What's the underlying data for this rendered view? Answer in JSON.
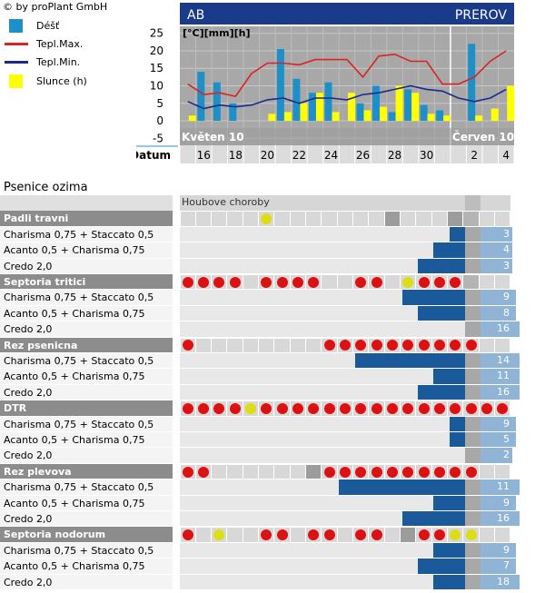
{
  "copyright": "© by proPlant GmbH",
  "legend": [
    {
      "label": "Déšť",
      "icon": "rain-swatch",
      "color": "#1e90c8"
    },
    {
      "label": "Tepl.Max.",
      "icon": "max-temp-line",
      "color": "#dd2222"
    },
    {
      "label": "Tepl.Min.",
      "icon": "min-temp-line",
      "color": "#1a2a8a"
    },
    {
      "label": "Slunce (h)",
      "icon": "sun-swatch",
      "color": "#ffff00"
    }
  ],
  "chart_data": {
    "type": "bar+line",
    "header_left": "AB",
    "header_right": "PREROV",
    "units_label": "[°C][mm][h]",
    "yticks": [
      25,
      20,
      15,
      10,
      5,
      0,
      -5
    ],
    "ylim": [
      -7,
      27
    ],
    "xlabel": "Datum",
    "month_labels": [
      {
        "label": "Květen 10",
        "day_index": 0
      },
      {
        "label": "Červen 10",
        "day_index": 17
      }
    ],
    "day_labels": [
      {
        "label": "16",
        "day_index": 1
      },
      {
        "label": "18",
        "day_index": 3
      },
      {
        "label": "20",
        "day_index": 5
      },
      {
        "label": "22",
        "day_index": 7
      },
      {
        "label": "24",
        "day_index": 9
      },
      {
        "label": "26",
        "day_index": 11
      },
      {
        "label": "28",
        "day_index": 13
      },
      {
        "label": "30",
        "day_index": 15
      },
      {
        "label": "2",
        "day_index": 18
      },
      {
        "label": "4",
        "day_index": 20
      }
    ],
    "days": [
      "15.5",
      "16.5",
      "17.5",
      "18.5",
      "19.5",
      "20.5",
      "21.5",
      "22.5",
      "23.5",
      "24.5",
      "25.5",
      "26.5",
      "27.5",
      "28.5",
      "29.5",
      "30.5",
      "31.5",
      "1.6",
      "2.6",
      "3.6",
      "4.6"
    ],
    "forecast_start_index": 17,
    "series": [
      {
        "name": "Déšť",
        "kind": "bar",
        "color": "#1e90c8",
        "values": [
          0,
          14,
          11,
          5,
          0,
          0,
          20.5,
          12,
          8,
          11,
          0,
          5,
          10,
          2.5,
          9,
          4.5,
          3,
          0,
          22,
          0,
          0
        ]
      },
      {
        "name": "Slunce (h)",
        "kind": "bar",
        "color": "#ffff00",
        "values": [
          1.5,
          0,
          0,
          0,
          0,
          2,
          2.5,
          5,
          8,
          2.5,
          8,
          3,
          4,
          10,
          8,
          2,
          1.5,
          0,
          1.5,
          3.5,
          10
        ]
      },
      {
        "name": "Tepl.Max.",
        "kind": "line",
        "color": "#dd2222",
        "values": [
          10.5,
          7.5,
          8,
          7,
          13.5,
          16.5,
          16.5,
          16,
          17.5,
          17.5,
          17.5,
          12.5,
          18.5,
          19,
          17,
          17,
          10.5,
          10.5,
          12.5,
          17,
          20
        ]
      },
      {
        "name": "Tepl.Min.",
        "kind": "line",
        "color": "#1a2a8a",
        "values": [
          5.5,
          3.5,
          4.5,
          4,
          4.5,
          6,
          6.5,
          5,
          6.5,
          6.5,
          6,
          7.5,
          8,
          9,
          10,
          9,
          8.5,
          6.5,
          5.5,
          6.5,
          9
        ]
      }
    ]
  },
  "grid": {
    "section_title": "Psenice ozima",
    "header_label": "Houbove choroby",
    "diseases": [
      {
        "name": "Padli travni",
        "cells": [
          "n",
          "n",
          "n",
          "n",
          "n",
          "Y",
          "n",
          "n",
          "n",
          "n",
          "n",
          "n",
          "n",
          "dg",
          "n",
          "n",
          "n",
          "dg",
          "n",
          "n",
          "n"
        ],
        "rows": [
          {
            "label": "Charisma 0,75 + Staccato 0,5",
            "bar": 1,
            "number": 3,
            "ext": 0
          },
          {
            "label": "Acanto 0,5 + Charisma 0,75",
            "bar": 2,
            "number": 4,
            "ext": 0
          },
          {
            "label": "Credo 2,0",
            "bar": 3,
            "number": 3,
            "ext": 0
          }
        ]
      },
      {
        "name": "Septoria tritici",
        "cells": [
          "R",
          "R",
          "R",
          "R",
          "n",
          "R",
          "R",
          "R",
          "R",
          "n",
          "n",
          "R",
          "R",
          "n",
          "Y",
          "R",
          "R",
          "R",
          "n",
          "n",
          "n"
        ],
        "rows": [
          {
            "label": "Charisma 0,75 + Staccato 0,5",
            "bar": 4,
            "number": 9,
            "ext": 1
          },
          {
            "label": "Acanto 0,5 + Charisma 0,75",
            "bar": 3,
            "number": 8,
            "ext": 1
          },
          {
            "label": "Credo 2,0",
            "bar": 0,
            "number": 16,
            "ext": 2
          }
        ]
      },
      {
        "name": "Rez psenicna",
        "cells": [
          "R",
          "n",
          "n",
          "n",
          "n",
          "n",
          "n",
          "n",
          "n",
          "R",
          "R",
          "R",
          "R",
          "R",
          "R",
          "R",
          "R",
          "R",
          "R",
          "n",
          "n"
        ],
        "rows": [
          {
            "label": "Charisma 0,75 + Staccato 0,5",
            "bar": 7,
            "number": 14,
            "ext": 2
          },
          {
            "label": "Acanto 0,5 + Charisma 0,75",
            "bar": 2,
            "number": 11,
            "ext": 2
          },
          {
            "label": "Credo 2,0",
            "bar": 3,
            "number": 16,
            "ext": 2
          }
        ]
      },
      {
        "name": "DTR",
        "cells": [
          "R",
          "R",
          "R",
          "R",
          "Y",
          "R",
          "R",
          "R",
          "R",
          "R",
          "R",
          "R",
          "R",
          "R",
          "R",
          "R",
          "R",
          "R",
          "R",
          "R",
          "R"
        ],
        "rows": [
          {
            "label": "Charisma 0,75 + Staccato 0,5",
            "bar": 1,
            "number": 9,
            "ext": 1
          },
          {
            "label": "Acanto 0,5 + Charisma 0,75",
            "bar": 1,
            "number": 5,
            "ext": 1
          },
          {
            "label": "Credo 2,0",
            "bar": 0,
            "number": 2,
            "ext": 0
          }
        ]
      },
      {
        "name": "Rez plevova",
        "cells": [
          "R",
          "R",
          "n",
          "n",
          "n",
          "n",
          "n",
          "n",
          "dg",
          "R",
          "R",
          "R",
          "R",
          "R",
          "R",
          "R",
          "R",
          "R",
          "R",
          "n",
          "n"
        ],
        "rows": [
          {
            "label": "Charisma 0,75 + Staccato 0,5",
            "bar": 8,
            "number": 11,
            "ext": 2
          },
          {
            "label": "Acanto 0,5 + Charisma 0,75",
            "bar": 2,
            "number": 9,
            "ext": 1
          },
          {
            "label": "Credo 2,0",
            "bar": 4,
            "number": 16,
            "ext": 2
          }
        ]
      },
      {
        "name": "Septoria nodorum",
        "cells": [
          "R",
          "n",
          "Y",
          "n",
          "n",
          "R",
          "R",
          "n",
          "R",
          "R",
          "n",
          "R",
          "R",
          "n",
          "dg",
          "R",
          "R",
          "Y",
          "Y",
          "n",
          "n"
        ],
        "rows": [
          {
            "label": "Charisma 0,75 + Staccato 0,5",
            "bar": 2,
            "number": 9,
            "ext": 1
          },
          {
            "label": "Acanto 0,5 + Charisma 0,75",
            "bar": 3,
            "number": 7,
            "ext": 1
          },
          {
            "label": "Credo 2,0",
            "bar": 2,
            "number": 18,
            "ext": 2
          }
        ]
      }
    ]
  }
}
